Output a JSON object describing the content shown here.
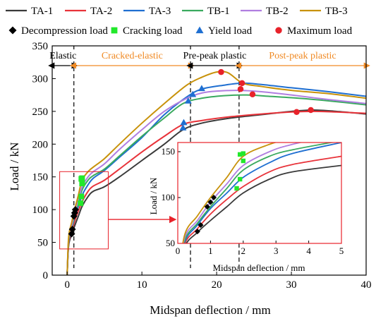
{
  "chart_data": {
    "type": "line",
    "xlabel": "Midspan deflection / mm",
    "ylabel": "Load / kN",
    "xlim": [
      -2,
      40
    ],
    "ylim": [
      0,
      350
    ],
    "xticks": [
      0,
      10,
      20,
      30,
      40
    ],
    "yticks": [
      0,
      50,
      100,
      150,
      200,
      250,
      300,
      350
    ],
    "grid": false,
    "legend_position": "top",
    "series": [
      {
        "name": "TA-1",
        "color": "#3a3a3a",
        "x": [
          0,
          0.2,
          0.6,
          1.0,
          1.5,
          2.0,
          2.8,
          3.5,
          5,
          7,
          10,
          13,
          15.5,
          18,
          22,
          26,
          30,
          33,
          36,
          40
        ],
        "y": [
          0,
          45,
          62,
          75,
          90,
          105,
          120,
          128,
          135,
          150,
          175,
          200,
          222,
          232,
          240,
          245,
          250,
          252,
          250,
          246
        ]
      },
      {
        "name": "TA-2",
        "color": "#e8333a",
        "x": [
          0,
          0.2,
          0.6,
          1.0,
          1.5,
          2.0,
          2.8,
          3.5,
          5,
          7,
          10,
          13,
          15.5,
          18,
          22,
          26,
          30,
          33,
          36,
          40
        ],
        "y": [
          0,
          48,
          66,
          82,
          98,
          112,
          128,
          136,
          145,
          162,
          188,
          212,
          230,
          236,
          242,
          246,
          249,
          250,
          249,
          247
        ]
      },
      {
        "name": "TA-3",
        "color": "#1f6fd1",
        "x": [
          0,
          0.2,
          0.6,
          1.0,
          1.5,
          2.0,
          2.8,
          3.5,
          5,
          7,
          10,
          13,
          16,
          18,
          21,
          23.5,
          26,
          30,
          35,
          40
        ],
        "y": [
          0,
          50,
          70,
          88,
          105,
          122,
          138,
          148,
          160,
          180,
          210,
          245,
          272,
          284,
          290,
          293,
          291,
          286,
          280,
          273
        ]
      },
      {
        "name": "TB-1",
        "color": "#3aaa5f",
        "x": [
          0,
          0.2,
          0.6,
          1.0,
          1.5,
          2.0,
          2.8,
          3.5,
          5,
          7,
          10,
          13,
          15.5,
          18,
          21,
          24,
          27,
          31,
          35,
          40
        ],
        "y": [
          0,
          52,
          72,
          90,
          110,
          130,
          145,
          152,
          162,
          182,
          212,
          240,
          262,
          270,
          274,
          275,
          273,
          270,
          266,
          260
        ]
      },
      {
        "name": "TB-2",
        "color": "#b07ee0",
        "x": [
          0,
          0.2,
          0.6,
          1.0,
          1.5,
          2.0,
          2.8,
          3.5,
          5,
          7,
          10,
          13,
          16,
          18,
          20,
          23,
          26,
          30,
          35,
          40
        ],
        "y": [
          0,
          55,
          75,
          95,
          115,
          135,
          150,
          158,
          170,
          192,
          222,
          250,
          270,
          278,
          281,
          282,
          280,
          275,
          268,
          262
        ]
      },
      {
        "name": "TB-3",
        "color": "#c8920a",
        "x": [
          0,
          0.2,
          0.6,
          1.0,
          1.5,
          2.0,
          2.8,
          3.5,
          5,
          7,
          10,
          13,
          16,
          18,
          20,
          21.5,
          23.5,
          26,
          30,
          35,
          40
        ],
        "y": [
          0,
          58,
          80,
          100,
          122,
          145,
          158,
          165,
          178,
          200,
          232,
          262,
          290,
          302,
          310,
          309,
          293,
          288,
          282,
          277,
          270
        ]
      }
    ],
    "markers": [
      {
        "name": "Decompression load",
        "shape": "diamond",
        "color": "#000000",
        "points": [
          [
            0.6,
            63
          ],
          [
            0.7,
            70
          ],
          [
            0.9,
            90
          ],
          [
            1.0,
            95
          ],
          [
            1.1,
            100
          ]
        ]
      },
      {
        "name": "Cracking load",
        "shape": "square",
        "color": "#22e82b",
        "points": [
          [
            1.8,
            110
          ],
          [
            1.9,
            120
          ],
          [
            2.0,
            140
          ],
          [
            2.0,
            148
          ],
          [
            1.9,
            147
          ]
        ]
      },
      {
        "name": "Yield load",
        "shape": "triangle",
        "color": "#1f6fd1",
        "points": [
          [
            15.5,
            225
          ],
          [
            15.6,
            233
          ],
          [
            16.2,
            266
          ],
          [
            16.8,
            276
          ],
          [
            18.0,
            285
          ]
        ]
      },
      {
        "name": "Maximum load",
        "shape": "circle",
        "color": "#e8222a",
        "points": [
          [
            20.6,
            310
          ],
          [
            23.2,
            284
          ],
          [
            23.4,
            293
          ],
          [
            24.8,
            276
          ],
          [
            30.7,
            249
          ],
          [
            32.6,
            252
          ]
        ]
      }
    ],
    "stage_boundaries": [
      0.9,
      16.5,
      23.0
    ],
    "stages": [
      {
        "label": "Elastic",
        "color": "#000000",
        "from": -2,
        "to": 0.9
      },
      {
        "label": "Cracked-elastic",
        "color": "#f08a24",
        "from": 0.9,
        "to": 16.5
      },
      {
        "label": "Pre-peak plastic",
        "color": "#000000",
        "from": 16.5,
        "to": 23.0
      },
      {
        "label": "Post-peak plastic",
        "color": "#f08a24",
        "from": 23.0,
        "to": 40
      }
    ],
    "inset": {
      "xlim": [
        0,
        5
      ],
      "ylim": [
        50,
        160
      ],
      "xticks": [
        0,
        1,
        2,
        3,
        4,
        5
      ],
      "yticks": [
        50,
        100,
        150
      ],
      "xlabel": "Midspan deflection / mm",
      "ylabel": "Load / kN",
      "source_box": {
        "x": [
          -1.0,
          5.5
        ],
        "y": [
          40,
          158
        ]
      }
    }
  },
  "colors": {
    "frame": "#000000",
    "inset_frame": "#e8222a",
    "stage_orange": "#f08a24"
  }
}
